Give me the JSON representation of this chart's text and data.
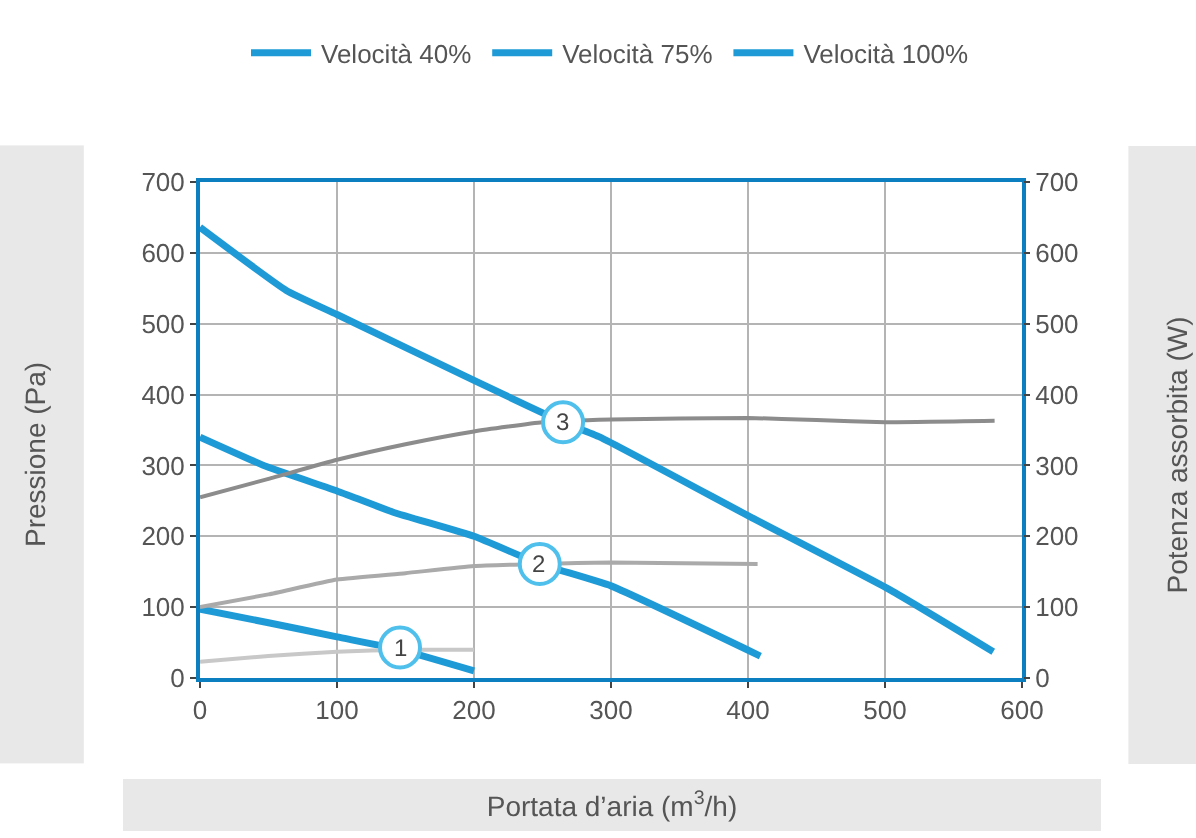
{
  "chart_data": {
    "type": "line",
    "xlabel": "Portata d’aria (m$^{3}$/h)",
    "ylabel": "Pressione (Pa)",
    "y2label": "Potenza assorbita (W)",
    "series": [
      {
        "name": "Velocità 40%",
        "color": "#1e9bd7",
        "x": [
          0,
          50,
          100,
          146,
          200
        ],
        "values": [
          97,
          78,
          58,
          40,
          10
        ]
      },
      {
        "name": "Velocità 75%",
        "color": "#1e9bd7",
        "x": [
          0,
          49,
          100,
          141,
          200,
          248,
          300,
          409
        ],
        "values": [
          340,
          298,
          264,
          234,
          200,
          161,
          130,
          31
        ]
      },
      {
        "name": "Velocità 100%",
        "color": "#1e9bd7",
        "x": [
          0,
          63,
          100,
          200,
          265,
          292,
          403,
          504,
          579
        ],
        "values": [
          636,
          547,
          513,
          420,
          361,
          340,
          226,
          124,
          37
        ]
      },
      {
        "color": "#c8c8c8",
        "axis": "y2",
        "x": [
          0,
          50,
          100,
          150,
          200
        ],
        "values": [
          23,
          31,
          37,
          40,
          40
        ]
      },
      {
        "color": "#aaaaaa",
        "axis": "y2",
        "x": [
          0,
          50,
          100,
          150,
          200,
          250,
          300,
          407
        ],
        "values": [
          100,
          118,
          139,
          148,
          158,
          161,
          163,
          161
        ]
      },
      {
        "color": "#8c8c8c",
        "axis": "y2",
        "x": [
          0,
          50,
          100,
          150,
          200,
          250,
          300,
          400,
          450,
          500,
          580
        ],
        "values": [
          255,
          281,
          308,
          330,
          348,
          361,
          365,
          367,
          364,
          361,
          363
        ]
      }
    ],
    "annotations": [
      {
        "text": "1",
        "x": 146,
        "y": 43
      },
      {
        "text": "2",
        "x": 248,
        "y": 161
      },
      {
        "text": "3",
        "x": 265,
        "y": 361
      }
    ],
    "xlim": [
      0,
      600
    ],
    "xticks": [
      0,
      100,
      200,
      300,
      400,
      500,
      600
    ],
    "ylim": [
      0,
      700
    ],
    "yticks": [
      0,
      100,
      200,
      300,
      400,
      500,
      600,
      700
    ],
    "y2lim": [
      0,
      700
    ],
    "y2ticks": [
      0,
      100,
      200,
      300,
      400,
      500,
      600,
      700
    ],
    "grid": true,
    "legend": "top",
    "marker": "none",
    "line_style": "solid"
  }
}
